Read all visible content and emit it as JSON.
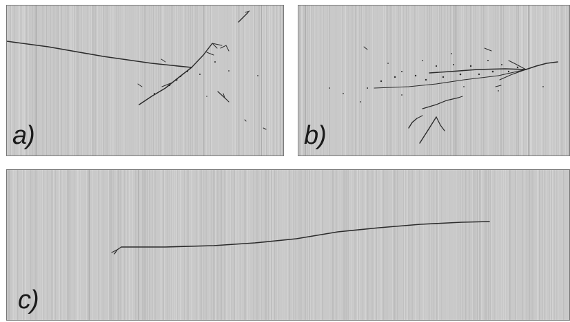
{
  "panels": [
    {
      "id": "a",
      "label": "a)"
    },
    {
      "id": "b",
      "label": "b)"
    },
    {
      "id": "c",
      "label": "c)"
    }
  ],
  "colors": {
    "background": "#c9c9c9",
    "stripe_light": "#d6d6d6",
    "stripe_dark": "#b8b8b8",
    "track": "#2b2b2b",
    "border": "#777777",
    "label": "#1a1a1a"
  }
}
